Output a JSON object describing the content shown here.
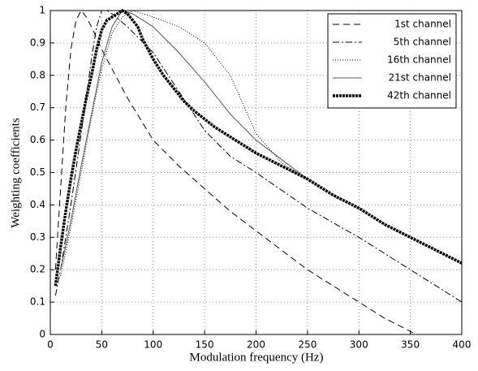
{
  "chart_data": {
    "type": "line",
    "xlabel": "Modulation frequency (Hz)",
    "ylabel": "Weighting coefficients",
    "xlim": [
      0,
      400
    ],
    "ylim": [
      0,
      1
    ],
    "xticks": [
      0,
      50,
      100,
      150,
      200,
      250,
      300,
      350,
      400
    ],
    "yticks": [
      0,
      0.1,
      0.2,
      0.3,
      0.4,
      0.5,
      0.6,
      0.7,
      0.8,
      0.9,
      1
    ],
    "grid": true,
    "legend": "upper right",
    "series": [
      {
        "name": "1st channel",
        "color": "#000000",
        "line_style": "dashed",
        "x": [
          5,
          10,
          15,
          20,
          25,
          30,
          35,
          40,
          50,
          60,
          75,
          100,
          125,
          150,
          175,
          200,
          225,
          250,
          275,
          300,
          325,
          350,
          355
        ],
        "values": [
          0.2,
          0.45,
          0.7,
          0.88,
          0.97,
          1.0,
          0.98,
          0.95,
          0.88,
          0.82,
          0.73,
          0.6,
          0.52,
          0.45,
          0.38,
          0.32,
          0.26,
          0.2,
          0.15,
          0.1,
          0.05,
          0.01,
          0
        ]
      },
      {
        "name": "5th channel",
        "color": "#000000",
        "line_style": "dashdot",
        "x": [
          5,
          10,
          20,
          30,
          40,
          45,
          50,
          55,
          60,
          75,
          100,
          125,
          150,
          175,
          200,
          250,
          300,
          350,
          400
        ],
        "values": [
          0.12,
          0.2,
          0.4,
          0.62,
          0.85,
          0.95,
          1.0,
          1.0,
          0.99,
          0.95,
          0.87,
          0.75,
          0.63,
          0.55,
          0.5,
          0.39,
          0.3,
          0.2,
          0.1
        ]
      },
      {
        "name": "16th channel",
        "color": "#000000",
        "line_style": "dotted",
        "x": [
          10,
          20,
          30,
          40,
          50,
          60,
          70,
          80,
          100,
          125,
          150,
          175,
          200,
          225,
          250
        ],
        "values": [
          0.18,
          0.33,
          0.5,
          0.67,
          0.82,
          0.93,
          0.98,
          1.0,
          0.98,
          0.95,
          0.9,
          0.8,
          0.62,
          0.53,
          0.48
        ]
      },
      {
        "name": "21st channel",
        "color": "#555555",
        "line_style": "solid",
        "x": [
          10,
          20,
          30,
          40,
          50,
          60,
          70,
          80,
          100,
          125,
          150,
          175,
          200,
          225,
          250
        ],
        "values": [
          0.2,
          0.35,
          0.52,
          0.68,
          0.84,
          0.95,
          1.0,
          0.99,
          0.95,
          0.87,
          0.78,
          0.68,
          0.6,
          0.54,
          0.48
        ]
      },
      {
        "name": "42th channel",
        "color": "#000000",
        "line_style": "bold-dotted",
        "x": [
          5,
          10,
          15,
          20,
          25,
          30,
          35,
          40,
          45,
          50,
          55,
          60,
          65,
          70,
          75,
          80,
          85,
          90,
          100,
          110,
          120,
          130,
          140,
          160,
          180,
          200,
          225,
          250,
          275,
          300,
          325,
          350,
          375,
          400
        ],
        "values": [
          0.15,
          0.27,
          0.38,
          0.48,
          0.57,
          0.65,
          0.73,
          0.8,
          0.88,
          0.94,
          0.97,
          0.98,
          0.99,
          1.0,
          0.99,
          0.97,
          0.95,
          0.91,
          0.85,
          0.8,
          0.76,
          0.72,
          0.69,
          0.64,
          0.6,
          0.56,
          0.52,
          0.48,
          0.43,
          0.39,
          0.34,
          0.3,
          0.26,
          0.22
        ]
      }
    ]
  }
}
